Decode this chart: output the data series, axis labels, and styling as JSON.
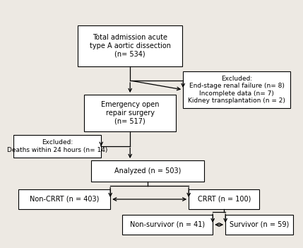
{
  "bg_color": "#ede9e3",
  "box_color": "#ffffff",
  "line_color": "#000000",
  "font_size": 7.0,
  "font_size_small": 6.5,
  "boxes": {
    "total": {
      "text": "Total admission acute\ntype A aortic dissection\n(n= 534)"
    },
    "excluded1": {
      "text": "Excluded:\nEnd-stage renal failure (n= 8)\nIncomplete data (n= 7)\nKidney transplantation (n = 2)"
    },
    "surgery": {
      "text": "Emergency open\nrepair surgery\n(n= 517)"
    },
    "excluded2": {
      "text": "Excluded:\nDeaths within 24 hours (n= 14)"
    },
    "analyzed": {
      "text": "Analyzed (n = 503)"
    },
    "noncrrt": {
      "text": "Non-CRRT (n = 403)"
    },
    "crrt": {
      "text": "CRRT (n = 100)"
    },
    "nonsurvivor": {
      "text": "Non-survivor (n = 41)"
    },
    "survivor": {
      "text": "Survivor (n = 59)"
    }
  }
}
